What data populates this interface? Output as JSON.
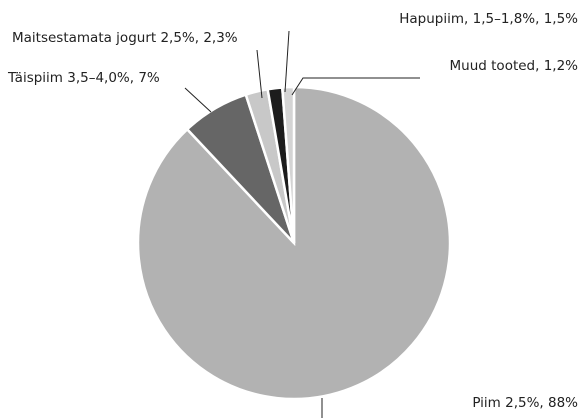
{
  "chart_data": {
    "type": "pie",
    "categories": [
      "Piim 2,5%,  88%",
      "Täispiim 3,5–4,0%, 7%",
      "Maitsestamata jogurt 2,5%, 2,3%",
      "Hapupiim, 1,5–1,8%, 1,5%",
      "Muud tooted, 1,2%"
    ],
    "values": [
      88,
      7,
      2.3,
      1.5,
      1.2
    ],
    "colors": [
      "#b2b2b2",
      "#666666",
      "#c8c8c8",
      "#1c1c1c",
      "#d4d4d4"
    ]
  }
}
